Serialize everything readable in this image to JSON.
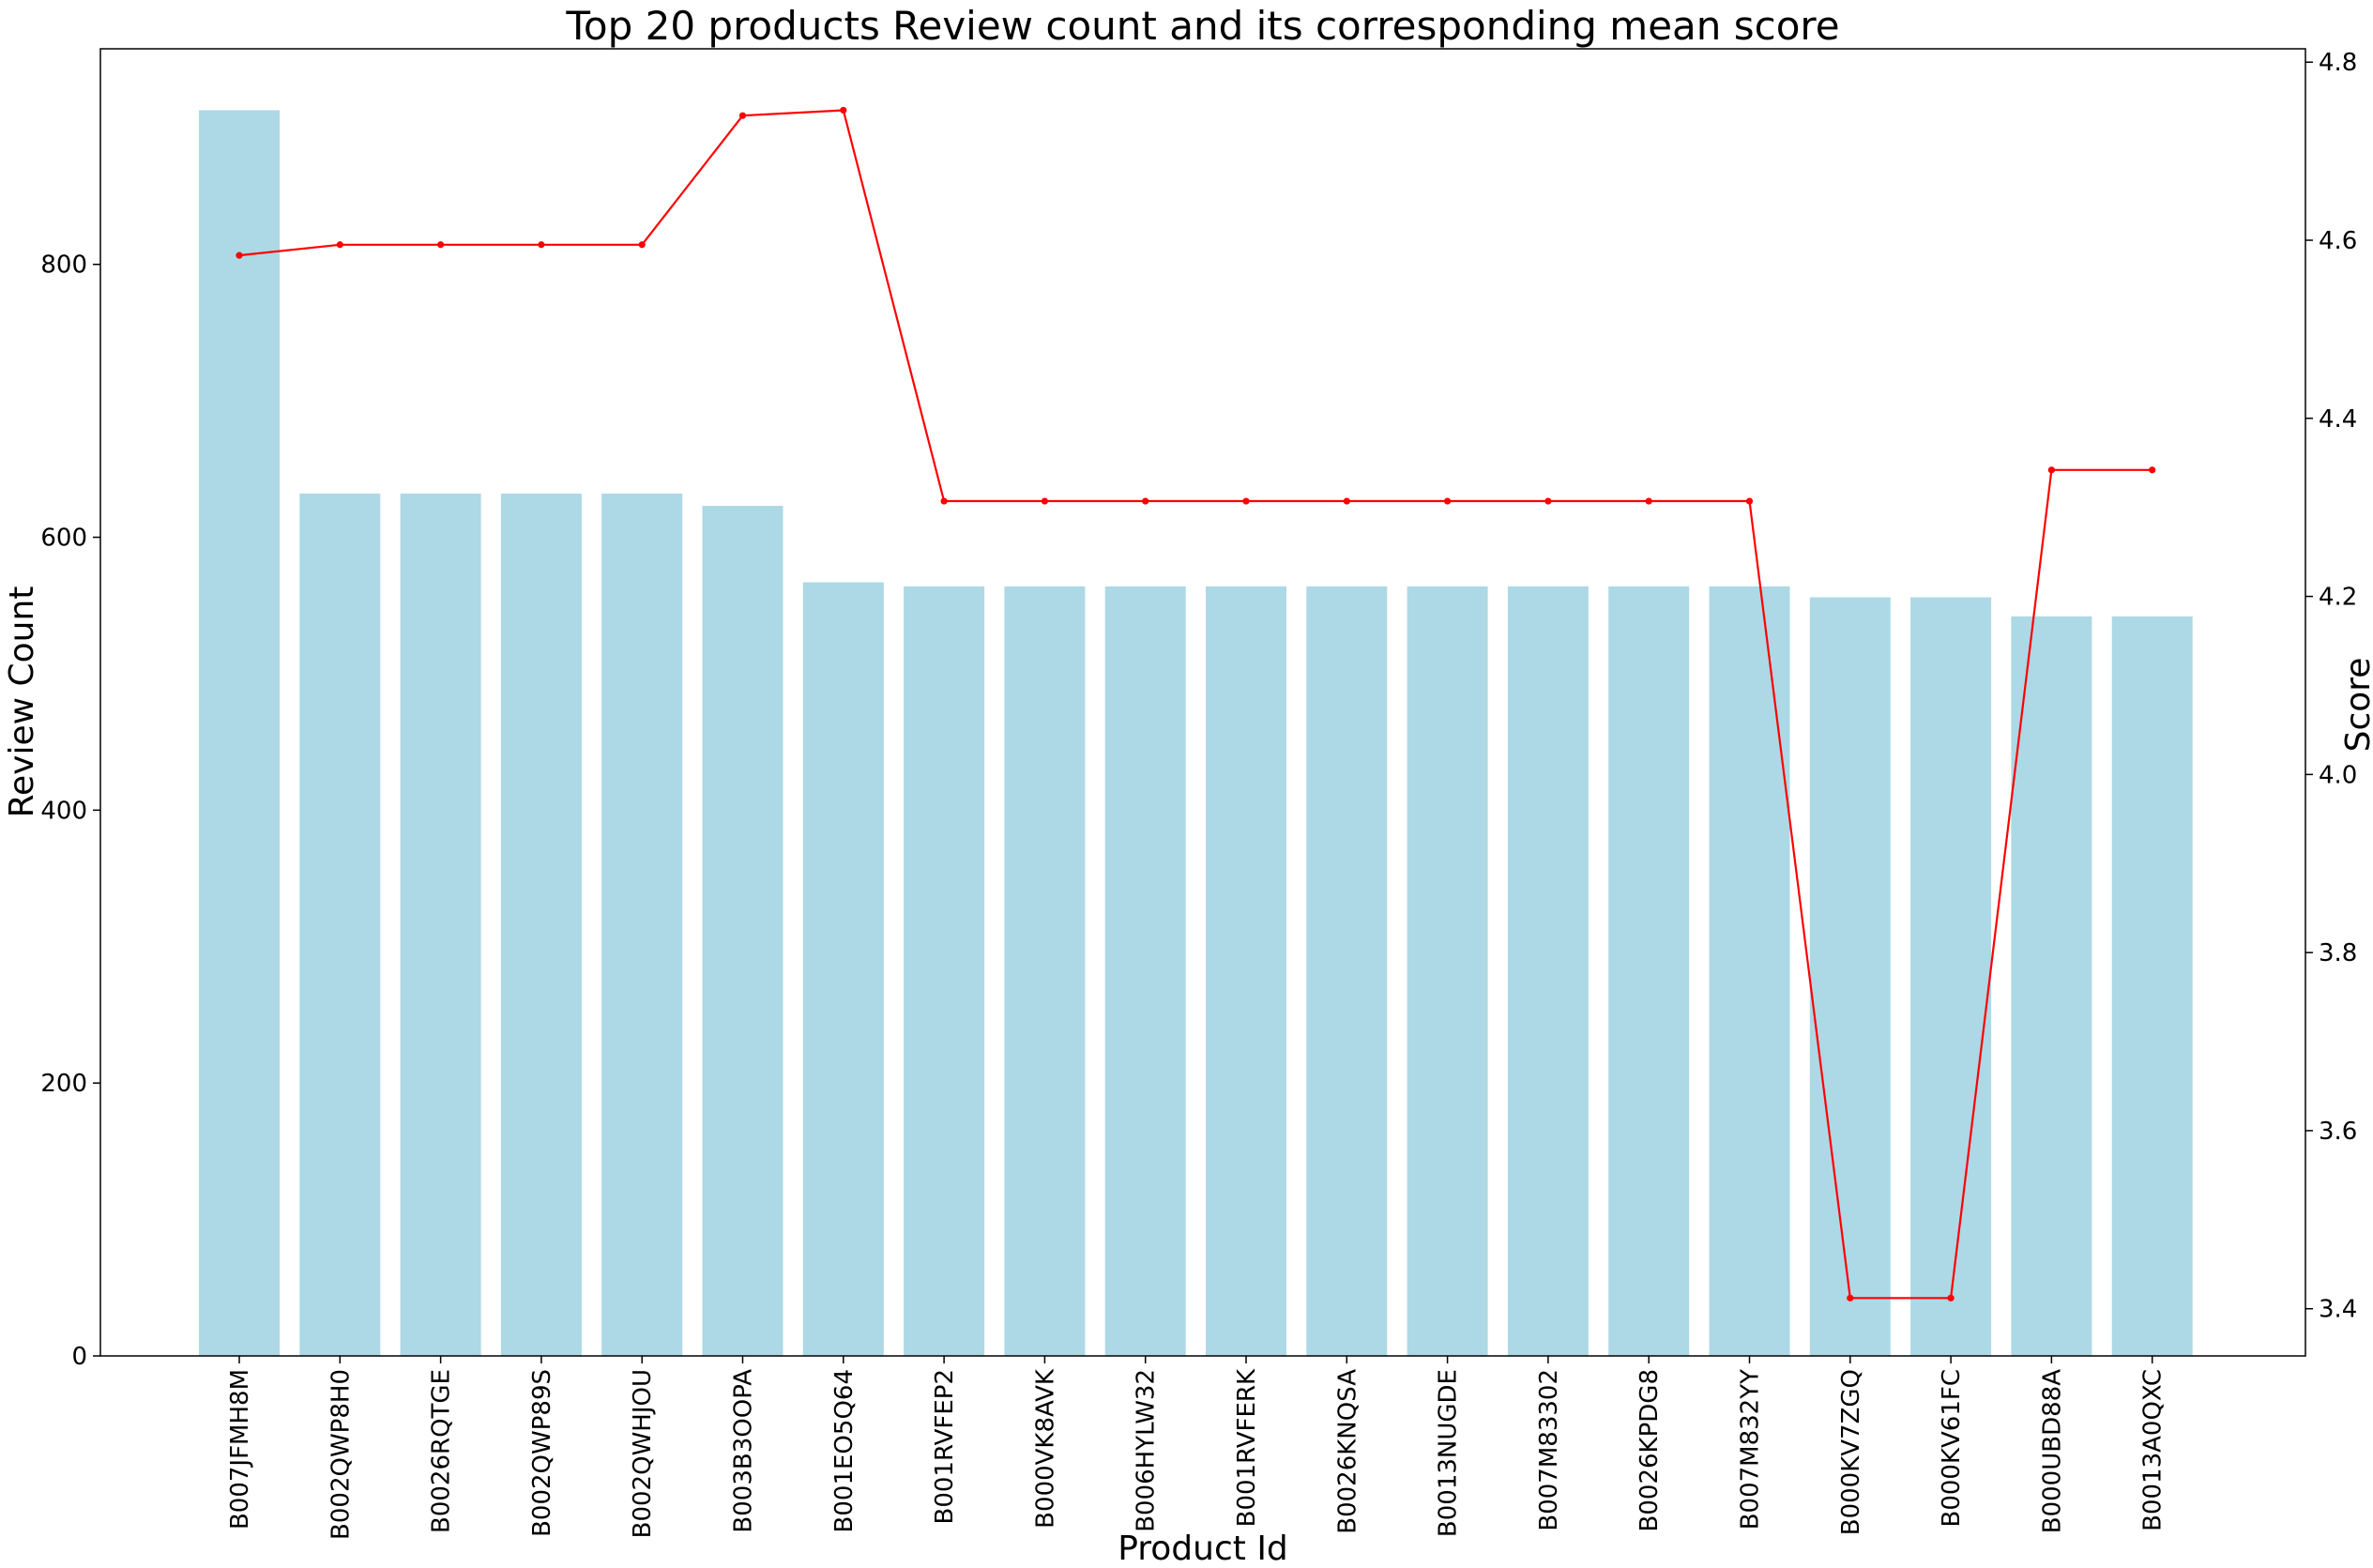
{
  "chart_data": {
    "type": "bar",
    "title": "Top 20 products Review count and its corresponding mean score",
    "xlabel": "Product Id",
    "ylabel": "Review Count",
    "y2label": "Score",
    "categories": [
      "B007JFMH8M",
      "B002QWP8H0",
      "B0026RQTGE",
      "B002QWP89S",
      "B002QWHJOU",
      "B003B3OOPA",
      "B001EO5Q64",
      "B001RVFEP2",
      "B000VK8AVK",
      "B006HYLW32",
      "B001RVFERK",
      "B0026KNQSA",
      "B0013NUGDE",
      "B007M83302",
      "B0026KPDG8",
      "B007M832YY",
      "B000KV7ZGQ",
      "B000KV61FC",
      "B000UBD88A",
      "B0013A0QXC"
    ],
    "series": [
      {
        "type": "bar",
        "axis": "left",
        "color": "#ADD8E6",
        "values": [
          913,
          632,
          632,
          632,
          632,
          623,
          567,
          564,
          564,
          564,
          564,
          564,
          564,
          564,
          564,
          564,
          556,
          556,
          542,
          542
        ]
      },
      {
        "type": "line",
        "axis": "right",
        "color": "#FF0000",
        "values": [
          4.583,
          4.595,
          4.595,
          4.595,
          4.595,
          4.74,
          4.746,
          4.307,
          4.307,
          4.307,
          4.307,
          4.307,
          4.307,
          4.307,
          4.307,
          4.307,
          3.412,
          3.412,
          4.342,
          4.342
        ]
      }
    ],
    "ylim": [
      0,
      958
    ],
    "y2lim": [
      3.347,
      4.815
    ],
    "yticks": [
      0,
      200,
      400,
      600,
      800
    ],
    "y2ticks": [
      3.4,
      3.6,
      3.8,
      4.0,
      4.2,
      4.4,
      4.6,
      4.8
    ],
    "grid": false,
    "legend": "none"
  }
}
